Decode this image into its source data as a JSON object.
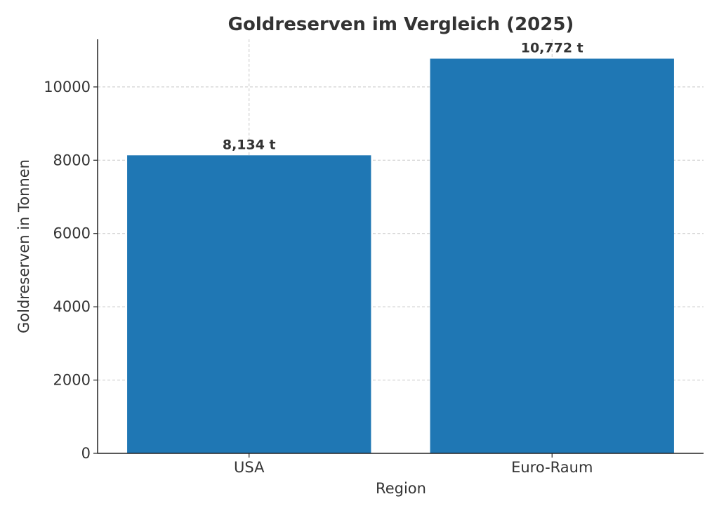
{
  "chart_data": {
    "type": "bar",
    "title": "Goldreserven im Vergleich (2025)",
    "xlabel": "Region",
    "ylabel": "Goldreserven in Tonnen",
    "categories": [
      "USA",
      "Euro-Raum"
    ],
    "values": [
      8134,
      10772
    ],
    "data_labels": [
      "8,134 t",
      "10,772 t"
    ],
    "ylim": [
      0,
      11300
    ],
    "yticks": [
      0,
      2000,
      4000,
      6000,
      8000,
      10000
    ],
    "ytick_labels": [
      "0",
      "2000",
      "4000",
      "6000",
      "8000",
      "10000"
    ],
    "grid": true,
    "bar_color": "#1f77b4"
  }
}
